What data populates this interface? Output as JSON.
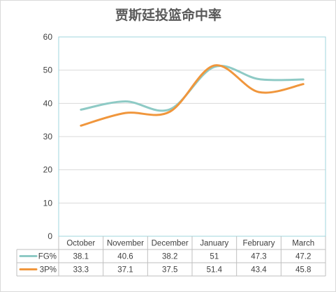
{
  "chart_data": {
    "type": "line",
    "title": "贾斯廷投篮命中率",
    "categories": [
      "October",
      "November",
      "December",
      "January",
      "February",
      "March"
    ],
    "series": [
      {
        "name": "FG%",
        "values": [
          38.1,
          40.6,
          38.2,
          51,
          47.3,
          47.2
        ],
        "color": "#8ecac5"
      },
      {
        "name": "3P%",
        "values": [
          33.3,
          37.1,
          37.5,
          51.4,
          43.4,
          45.8
        ],
        "color": "#f0963c"
      }
    ],
    "ylim": [
      0,
      60
    ],
    "yticks": [
      0,
      10,
      20,
      30,
      40,
      50,
      60
    ],
    "grid": true,
    "legend": "data-table"
  }
}
